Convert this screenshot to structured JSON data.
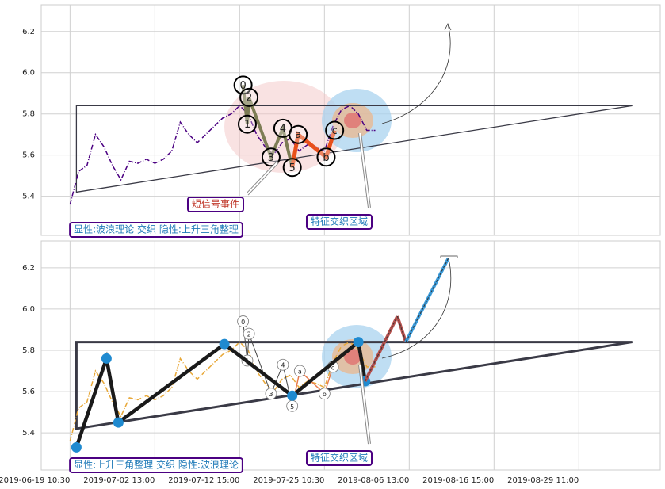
{
  "chart_data": [
    {
      "type": "line",
      "color": "#4b0082",
      "x": [
        0,
        1,
        2,
        3,
        4,
        5,
        6,
        7,
        8,
        9,
        10,
        11,
        12,
        13,
        14,
        15,
        16,
        17,
        18,
        19,
        20,
        21,
        22,
        23,
        24,
        25,
        26,
        27,
        28,
        29,
        30,
        31,
        32,
        33,
        34,
        35,
        36
      ],
      "values": [
        5.36,
        5.52,
        5.55,
        5.7,
        5.64,
        5.55,
        5.48,
        5.57,
        5.56,
        5.58,
        5.56,
        5.58,
        5.62,
        5.76,
        5.7,
        5.66,
        5.7,
        5.74,
        5.78,
        5.8,
        5.84,
        5.8,
        5.7,
        5.64,
        5.6,
        5.66,
        5.68,
        5.62,
        5.65,
        5.64,
        5.62,
        5.74,
        5.82,
        5.84,
        5.8,
        5.72,
        5.72
      ],
      "xlim": [
        -3.4,
        69.6
      ],
      "ylim": [
        5.21,
        6.33
      ],
      "yticks": [
        5.4,
        5.6,
        5.8,
        {
          "value": 6,
          "label": "6.0"
        },
        6.2
      ],
      "grid": true,
      "triangle": {
        "x": [
          66.3,
          0.75,
          0.75,
          66.3
        ],
        "y": [
          5.84,
          5.84,
          5.42,
          5.84
        ]
      },
      "waves": [
        {
          "label": "0",
          "x": 20.4,
          "y": 5.94
        },
        {
          "label": "1",
          "x": 20.9,
          "y": 5.75
        },
        {
          "label": "2",
          "x": 21.1,
          "y": 5.88
        },
        {
          "label": "3",
          "x": 23.7,
          "y": 5.59
        },
        {
          "label": "4",
          "x": 25.1,
          "y": 5.73
        },
        {
          "label": "5",
          "x": 26.2,
          "y": 5.54
        },
        {
          "label": "a",
          "x": 26.9,
          "y": 5.7
        },
        {
          "label": "b",
          "x": 30.2,
          "y": 5.59
        },
        {
          "label": "c",
          "x": 31.2,
          "y": 5.72
        }
      ],
      "annotations": [
        "短信号事件",
        "特征交织区域",
        "显性:波浪理论 交织 隐性:上升三角整理"
      ]
    },
    {
      "type": "line",
      "color": "#e8a838",
      "x": [
        0,
        1,
        2,
        3,
        4,
        5,
        6,
        7,
        8,
        9,
        10,
        11,
        12,
        13,
        14,
        15,
        16,
        17,
        18,
        19,
        20,
        21,
        22,
        23,
        24,
        25,
        26,
        27,
        28,
        29,
        30,
        31,
        32,
        33,
        34,
        35,
        36
      ],
      "values": [
        5.36,
        5.52,
        5.55,
        5.7,
        5.64,
        5.55,
        5.48,
        5.57,
        5.56,
        5.58,
        5.56,
        5.58,
        5.62,
        5.76,
        5.7,
        5.66,
        5.7,
        5.74,
        5.78,
        5.8,
        5.84,
        5.8,
        5.7,
        5.64,
        5.6,
        5.66,
        5.68,
        5.62,
        5.65,
        5.64,
        5.62,
        5.74,
        5.82,
        5.84,
        5.8,
        5.72,
        5.72
      ],
      "xlim": [
        -3.4,
        69.6
      ],
      "ylim": [
        5.22,
        6.33
      ],
      "yticks": [
        5.4,
        5.6,
        5.8,
        {
          "value": 6,
          "label": "6.0"
        },
        6.2
      ],
      "grid": true,
      "xticks": [
        {
          "value": 0,
          "label": "2019-06-19 10:30"
        },
        {
          "value": 10,
          "label": "2019-07-02 13:00"
        },
        {
          "value": 20,
          "label": "2019-07-12 15:00"
        },
        {
          "value": 30,
          "label": "2019-07-25 10:30"
        },
        {
          "value": 40,
          "label": "2019-08-06 13:00"
        },
        {
          "value": 50,
          "label": "2019-08-16 15:00"
        },
        {
          "value": 60,
          "label": "2019-08-29 11:00"
        }
      ],
      "triangle": {
        "x": [
          66.3,
          0.75,
          0.75,
          66.3
        ],
        "y": [
          5.84,
          5.84,
          5.42,
          5.84
        ]
      },
      "waves": [
        {
          "label": "0",
          "x": 20.4,
          "y": 5.94
        },
        {
          "label": "1",
          "x": 20.9,
          "y": 5.75
        },
        {
          "label": "2",
          "x": 21.1,
          "y": 5.88
        },
        {
          "label": "3",
          "x": 23.7,
          "y": 5.59
        },
        {
          "label": "4",
          "x": 25.1,
          "y": 5.73
        },
        {
          "label": "5",
          "x": 26.2,
          "y": 5.53
        },
        {
          "label": "a",
          "x": 27.1,
          "y": 5.7
        },
        {
          "label": "b",
          "x": 30.0,
          "y": 5.59
        },
        {
          "label": "c",
          "x": 31.0,
          "y": 5.72
        }
      ],
      "pivots": {
        "color": "#1f8ad0",
        "x": [
          0.75,
          4.3,
          5.7,
          18.2,
          26.2,
          34.0,
          34.8
        ],
        "y": [
          5.33,
          5.76,
          5.45,
          5.83,
          5.58,
          5.84,
          5.65
        ]
      },
      "projection": {
        "colors": [
          "#b5504d",
          "#b5504d",
          "#3a9ad9"
        ],
        "x": [
          34.8,
          38.6,
          39.6,
          44.6
        ],
        "y": [
          5.65,
          5.965,
          5.84,
          6.245
        ]
      },
      "annotations": [
        "显性:上升三角整理 交织 隐性:波浪理论",
        "特征交织区域"
      ]
    }
  ]
}
